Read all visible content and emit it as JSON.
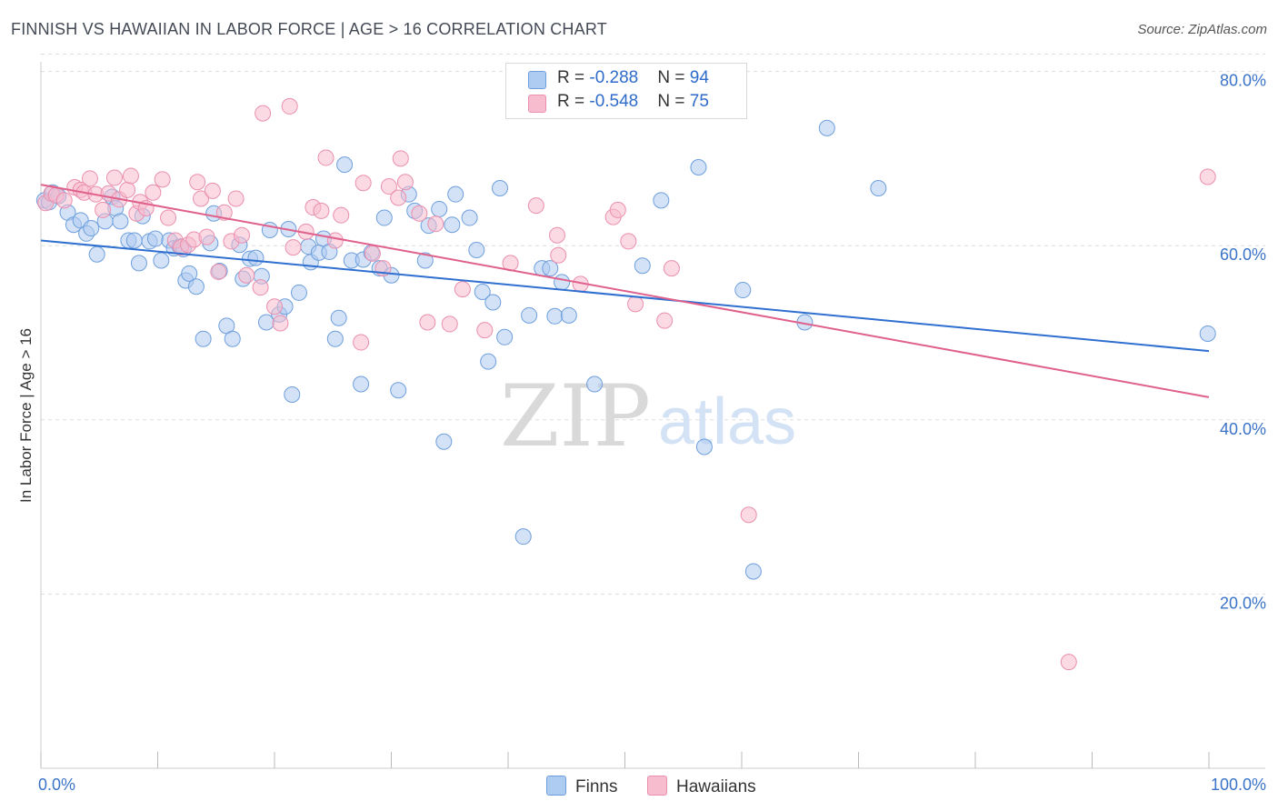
{
  "title": "FINNISH VS HAWAIIAN IN LABOR FORCE | AGE > 16 CORRELATION CHART",
  "source": "Source: ZipAtlas.com",
  "watermark": {
    "zip": "ZIP",
    "atlas": "atlas"
  },
  "colors": {
    "finns_fill": "#aecbf1",
    "finns_stroke": "#6e9fdc",
    "finns_line": "#2f6fd0",
    "hawaiians_fill": "#f7bccd",
    "hawaiians_stroke": "#ea8fae",
    "hawaiians_line": "#e0608c",
    "axis_label": "#3b73c8",
    "grid": "#dddddd"
  },
  "legend": {
    "finns": {
      "r_label": "R = ",
      "r_value": "-0.288",
      "n_label": "N = ",
      "n_value": "94"
    },
    "hawaiians": {
      "r_label": "R = ",
      "r_value": "-0.548",
      "n_label": "N = ",
      "n_value": "75"
    }
  },
  "chart_data": {
    "type": "scatter",
    "title": "FINNISH VS HAWAIIAN IN LABOR FORCE | AGE > 16 CORRELATION CHART",
    "xlabel": "",
    "ylabel": "In Labor Force | Age > 16",
    "xlim": [
      0,
      100
    ],
    "ylim": [
      0,
      82
    ],
    "x_tick_labels": [
      "0.0%",
      "100.0%"
    ],
    "y_ticks": [
      20,
      40,
      60,
      80
    ],
    "y_tick_labels": [
      "20.0%",
      "40.0%",
      "60.0%",
      "80.0%"
    ],
    "grid": true,
    "legend_position": "bottom",
    "series": [
      {
        "name": "Finns",
        "r": -0.288,
        "n": 94,
        "trend": {
          "x": [
            0,
            100
          ],
          "y": [
            60.6,
            47.9
          ]
        },
        "points": [
          [
            0.3,
            65.2
          ],
          [
            0.7,
            65.0
          ],
          [
            1.0,
            66.1
          ],
          [
            1.5,
            65.7
          ],
          [
            2.3,
            63.8
          ],
          [
            2.8,
            62.4
          ],
          [
            3.4,
            62.9
          ],
          [
            3.9,
            61.4
          ],
          [
            4.3,
            62.0
          ],
          [
            4.8,
            59.0
          ],
          [
            5.5,
            62.8
          ],
          [
            6.1,
            65.6
          ],
          [
            6.4,
            64.3
          ],
          [
            6.8,
            62.8
          ],
          [
            7.5,
            60.6
          ],
          [
            8.0,
            60.6
          ],
          [
            8.4,
            58.0
          ],
          [
            8.7,
            63.4
          ],
          [
            9.3,
            60.5
          ],
          [
            9.8,
            60.8
          ],
          [
            10.3,
            58.3
          ],
          [
            11.0,
            60.6
          ],
          [
            11.4,
            59.7
          ],
          [
            11.9,
            59.9
          ],
          [
            12.2,
            59.6
          ],
          [
            12.4,
            56.0
          ],
          [
            12.7,
            56.8
          ],
          [
            13.3,
            55.3
          ],
          [
            13.9,
            49.3
          ],
          [
            14.5,
            60.3
          ],
          [
            14.8,
            63.7
          ],
          [
            15.3,
            57.1
          ],
          [
            15.9,
            50.8
          ],
          [
            16.4,
            49.3
          ],
          [
            17.0,
            60.1
          ],
          [
            17.3,
            56.2
          ],
          [
            17.9,
            58.5
          ],
          [
            18.4,
            58.6
          ],
          [
            18.9,
            56.5
          ],
          [
            19.3,
            51.2
          ],
          [
            19.6,
            61.8
          ],
          [
            20.4,
            52.1
          ],
          [
            20.9,
            53.0
          ],
          [
            21.2,
            61.9
          ],
          [
            21.5,
            42.9
          ],
          [
            22.1,
            54.6
          ],
          [
            22.9,
            59.9
          ],
          [
            23.1,
            58.1
          ],
          [
            23.8,
            59.2
          ],
          [
            24.2,
            60.8
          ],
          [
            24.7,
            59.3
          ],
          [
            25.2,
            49.3
          ],
          [
            25.5,
            51.7
          ],
          [
            26.0,
            69.3
          ],
          [
            26.6,
            58.3
          ],
          [
            27.4,
            44.1
          ],
          [
            27.6,
            58.4
          ],
          [
            28.3,
            59.2
          ],
          [
            29.0,
            57.4
          ],
          [
            29.4,
            63.2
          ],
          [
            30.0,
            56.6
          ],
          [
            30.6,
            43.4
          ],
          [
            31.5,
            65.9
          ],
          [
            32.0,
            64.0
          ],
          [
            32.9,
            58.3
          ],
          [
            33.2,
            62.3
          ],
          [
            34.1,
            64.2
          ],
          [
            34.5,
            37.5
          ],
          [
            35.2,
            62.4
          ],
          [
            35.5,
            65.9
          ],
          [
            36.7,
            63.2
          ],
          [
            37.3,
            59.5
          ],
          [
            37.8,
            54.7
          ],
          [
            38.3,
            46.7
          ],
          [
            38.7,
            53.5
          ],
          [
            39.3,
            66.6
          ],
          [
            39.7,
            49.5
          ],
          [
            41.3,
            26.6
          ],
          [
            41.8,
            52.0
          ],
          [
            42.9,
            57.4
          ],
          [
            43.6,
            57.4
          ],
          [
            44.0,
            51.9
          ],
          [
            44.6,
            55.8
          ],
          [
            45.2,
            52.0
          ],
          [
            47.4,
            44.1
          ],
          [
            51.5,
            57.7
          ],
          [
            53.1,
            65.2
          ],
          [
            56.3,
            69.0
          ],
          [
            56.8,
            36.9
          ],
          [
            61.0,
            22.6
          ],
          [
            60.1,
            54.9
          ],
          [
            65.4,
            51.2
          ],
          [
            67.3,
            73.5
          ],
          [
            71.7,
            66.6
          ],
          [
            99.9,
            49.9
          ]
        ]
      },
      {
        "name": "Hawaiians",
        "r": -0.548,
        "n": 75,
        "trend": {
          "x": [
            0,
            100
          ],
          "y": [
            67.0,
            42.6
          ]
        },
        "points": [
          [
            0.4,
            64.9
          ],
          [
            0.9,
            66.0
          ],
          [
            1.3,
            65.8
          ],
          [
            2.0,
            65.2
          ],
          [
            2.9,
            66.7
          ],
          [
            3.4,
            66.4
          ],
          [
            3.7,
            66.1
          ],
          [
            4.2,
            67.7
          ],
          [
            4.7,
            65.9
          ],
          [
            5.3,
            64.1
          ],
          [
            5.8,
            66.0
          ],
          [
            6.3,
            67.8
          ],
          [
            6.7,
            65.3
          ],
          [
            7.4,
            66.4
          ],
          [
            7.7,
            68.0
          ],
          [
            8.2,
            63.7
          ],
          [
            8.5,
            65.0
          ],
          [
            9.0,
            64.3
          ],
          [
            9.6,
            66.1
          ],
          [
            10.4,
            67.6
          ],
          [
            10.9,
            63.2
          ],
          [
            11.5,
            60.6
          ],
          [
            12.0,
            59.8
          ],
          [
            12.6,
            60.1
          ],
          [
            13.1,
            60.7
          ],
          [
            13.4,
            67.3
          ],
          [
            13.7,
            65.4
          ],
          [
            14.2,
            61.0
          ],
          [
            14.7,
            66.3
          ],
          [
            15.2,
            57.0
          ],
          [
            15.7,
            63.8
          ],
          [
            16.3,
            60.5
          ],
          [
            16.7,
            65.4
          ],
          [
            17.2,
            61.2
          ],
          [
            17.6,
            56.6
          ],
          [
            18.8,
            55.2
          ],
          [
            19.0,
            75.2
          ],
          [
            20.0,
            53.0
          ],
          [
            20.5,
            51.1
          ],
          [
            21.3,
            76.0
          ],
          [
            21.6,
            59.8
          ],
          [
            22.7,
            61.6
          ],
          [
            23.3,
            64.4
          ],
          [
            24.0,
            64.0
          ],
          [
            24.4,
            70.1
          ],
          [
            25.2,
            60.6
          ],
          [
            25.7,
            63.5
          ],
          [
            27.4,
            48.9
          ],
          [
            27.6,
            67.2
          ],
          [
            28.4,
            59.1
          ],
          [
            29.3,
            57.4
          ],
          [
            29.8,
            66.8
          ],
          [
            30.6,
            65.5
          ],
          [
            30.8,
            70.0
          ],
          [
            31.2,
            67.3
          ],
          [
            32.4,
            63.7
          ],
          [
            33.1,
            51.2
          ],
          [
            33.8,
            62.5
          ],
          [
            35.0,
            51.0
          ],
          [
            36.1,
            55.0
          ],
          [
            38.0,
            50.3
          ],
          [
            40.2,
            58.0
          ],
          [
            42.4,
            64.6
          ],
          [
            44.2,
            61.2
          ],
          [
            44.3,
            58.9
          ],
          [
            46.2,
            55.6
          ],
          [
            49.0,
            63.3
          ],
          [
            49.4,
            64.1
          ],
          [
            50.3,
            60.5
          ],
          [
            50.9,
            53.3
          ],
          [
            53.4,
            51.4
          ],
          [
            54.0,
            57.4
          ],
          [
            60.6,
            29.1
          ],
          [
            88.0,
            12.2
          ],
          [
            99.9,
            67.9
          ]
        ]
      }
    ]
  }
}
